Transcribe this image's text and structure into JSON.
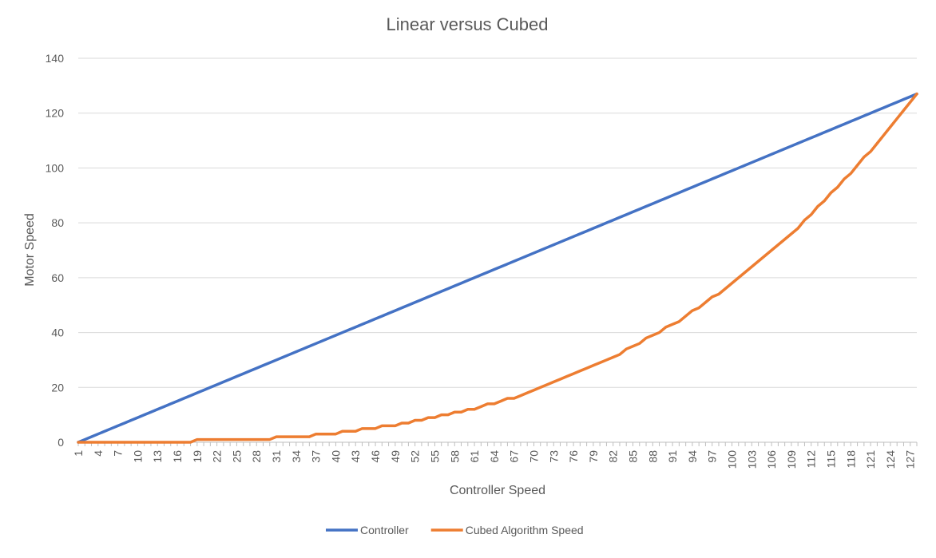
{
  "chart_data": {
    "type": "line",
    "title": "Linear versus Cubed",
    "xlabel": "Controller Speed",
    "ylabel": "Motor Speed",
    "x": {
      "start": 1,
      "end": 128,
      "step": 1
    },
    "x_tick_labels": [
      "1",
      "4",
      "7",
      "10",
      "13",
      "16",
      "19",
      "22",
      "25",
      "28",
      "31",
      "34",
      "37",
      "40",
      "43",
      "46",
      "49",
      "52",
      "55",
      "58",
      "61",
      "64",
      "67",
      "70",
      "73",
      "76",
      "79",
      "82",
      "85",
      "88",
      "91",
      "94",
      "97",
      "100",
      "103",
      "106",
      "109",
      "112",
      "115",
      "118",
      "121",
      "124",
      "127"
    ],
    "ylim": [
      0,
      140
    ],
    "y_ticks": [
      0,
      20,
      40,
      60,
      80,
      100,
      120,
      140
    ],
    "grid": true,
    "legend_position": "bottom",
    "series": [
      {
        "name": "Controller",
        "color": "#4472C4",
        "values": [
          0,
          1,
          2,
          3,
          4,
          5,
          6,
          7,
          8,
          9,
          10,
          11,
          12,
          13,
          14,
          15,
          16,
          17,
          18,
          19,
          20,
          21,
          22,
          23,
          24,
          25,
          26,
          27,
          28,
          29,
          30,
          31,
          32,
          33,
          34,
          35,
          36,
          37,
          38,
          39,
          40,
          41,
          42,
          43,
          44,
          45,
          46,
          47,
          48,
          49,
          50,
          51,
          52,
          53,
          54,
          55,
          56,
          57,
          58,
          59,
          60,
          61,
          62,
          63,
          64,
          65,
          66,
          67,
          68,
          69,
          70,
          71,
          72,
          73,
          74,
          75,
          76,
          77,
          78,
          79,
          80,
          81,
          82,
          83,
          84,
          85,
          86,
          87,
          88,
          89,
          90,
          91,
          92,
          93,
          94,
          95,
          96,
          97,
          98,
          99,
          100,
          101,
          102,
          103,
          104,
          105,
          106,
          107,
          108,
          109,
          110,
          111,
          112,
          113,
          114,
          115,
          116,
          117,
          118,
          119,
          120,
          121,
          122,
          123,
          124,
          125,
          126,
          127
        ]
      },
      {
        "name": "Cubed Algorithm Speed",
        "color": "#ED7D31",
        "values": [
          0,
          0,
          0,
          0,
          0,
          0,
          0,
          0,
          0,
          0,
          0,
          0,
          0,
          0,
          0,
          0,
          0,
          0,
          1,
          1,
          1,
          1,
          1,
          1,
          1,
          1,
          1,
          1,
          1,
          1,
          2,
          2,
          2,
          2,
          2,
          2,
          3,
          3,
          3,
          3,
          4,
          4,
          4,
          5,
          5,
          5,
          6,
          6,
          6,
          7,
          7,
          8,
          8,
          9,
          9,
          10,
          10,
          11,
          11,
          12,
          12,
          13,
          14,
          14,
          15,
          16,
          16,
          17,
          18,
          19,
          20,
          21,
          22,
          23,
          24,
          25,
          26,
          27,
          28,
          29,
          30,
          31,
          32,
          34,
          35,
          36,
          38,
          39,
          40,
          42,
          43,
          44,
          46,
          48,
          49,
          51,
          53,
          54,
          56,
          58,
          60,
          62,
          64,
          66,
          68,
          70,
          72,
          74,
          76,
          78,
          81,
          83,
          86,
          88,
          91,
          93,
          96,
          98,
          101,
          104,
          106,
          109,
          112,
          115,
          118,
          121,
          124,
          127
        ]
      }
    ]
  }
}
